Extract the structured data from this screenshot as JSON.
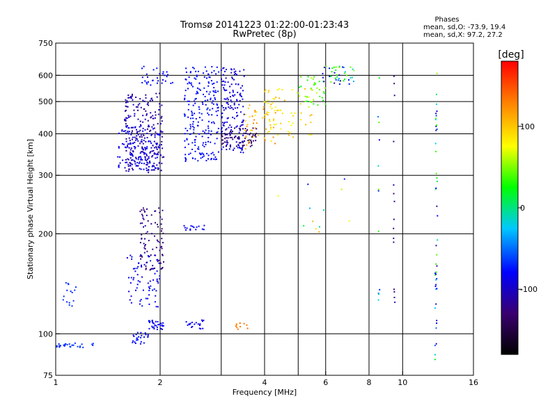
{
  "chart_data": {
    "type": "scatter",
    "title": "Tromsø 20141223 01:22:00-01:23:43",
    "subtitle": "RwPretec (8p)",
    "xlabel": "Frequency [MHz]",
    "ylabel": "Stationary phase Virtual Height [km]",
    "x_scale": "log",
    "y_scale": "log",
    "xlim": [
      1,
      16
    ],
    "ylim": [
      75,
      750
    ],
    "x_ticks": [
      1,
      2,
      4,
      6,
      8,
      10,
      16
    ],
    "x_tick_labels": [
      "1",
      "2",
      "4",
      "6",
      "8",
      "10",
      "16"
    ],
    "y_ticks": [
      75,
      100,
      200,
      300,
      400,
      500,
      600,
      750
    ],
    "y_tick_labels": [
      "75",
      "100",
      "200",
      "300",
      "400",
      "500",
      "600",
      "750"
    ],
    "grid": true,
    "stats": {
      "heading": "Phases",
      "line_o": "mean, sd,O: -73.9, 19.4",
      "line_x": "mean, sd,X:  97.2, 27.2"
    },
    "colorbar": {
      "label": "[deg]",
      "range": [
        -180,
        180
      ],
      "ticks": [
        100,
        0,
        -100
      ],
      "tick_labels": [
        "100",
        "0",
        "-100"
      ],
      "colors": [
        "#000000",
        "#3a0070",
        "#0000ff",
        "#00c8ff",
        "#00ff00",
        "#ffff00",
        "#ff8000",
        "#ff0000"
      ]
    },
    "clusters": [
      {
        "x": [
          1.58,
          2.05
        ],
        "y": [
          305,
          530
        ],
        "n": 240,
        "phase": [
          -120,
          -95
        ]
      },
      {
        "x": [
          1.5,
          2.0
        ],
        "y": [
          310,
          420
        ],
        "n": 120,
        "phase": [
          -90,
          -75
        ]
      },
      {
        "x": [
          1.75,
          2.2
        ],
        "y": [
          560,
          640
        ],
        "n": 30,
        "phase": [
          -80,
          -70
        ]
      },
      {
        "x": [
          2.35,
          2.95
        ],
        "y": [
          330,
          640
        ],
        "n": 220,
        "phase": [
          -80,
          -70
        ]
      },
      {
        "x": [
          3.0,
          3.5
        ],
        "y": [
          350,
          640
        ],
        "n": 160,
        "phase": [
          -100,
          -80
        ]
      },
      {
        "x": [
          3.0,
          3.8
        ],
        "y": [
          365,
          420
        ],
        "n": 70,
        "phase": [
          -140,
          -120
        ]
      },
      {
        "x": [
          3.5,
          4.3
        ],
        "y": [
          360,
          500
        ],
        "n": 50,
        "phase": [
          80,
          130
        ]
      },
      {
        "x": [
          4.0,
          5.5
        ],
        "y": [
          390,
          550
        ],
        "n": 60,
        "phase": [
          70,
          110
        ]
      },
      {
        "x": [
          5.0,
          6.0
        ],
        "y": [
          480,
          600
        ],
        "n": 40,
        "phase": [
          20,
          70
        ]
      },
      {
        "x": [
          5.8,
          7.3
        ],
        "y": [
          560,
          640
        ],
        "n": 45,
        "phase": [
          -120,
          60
        ]
      },
      {
        "x": [
          1.75,
          2.05
        ],
        "y": [
          155,
          240
        ],
        "n": 90,
        "phase": [
          -130,
          -110
        ]
      },
      {
        "x": [
          1.6,
          2.0
        ],
        "y": [
          120,
          175
        ],
        "n": 70,
        "phase": [
          -90,
          -70
        ]
      },
      {
        "x": [
          1.85,
          2.05
        ],
        "y": [
          103,
          110
        ],
        "n": 30,
        "phase": [
          -85,
          -75
        ]
      },
      {
        "x": [
          2.35,
          2.7
        ],
        "y": [
          103,
          110
        ],
        "n": 20,
        "phase": [
          -85,
          -75
        ]
      },
      {
        "x": [
          1.65,
          1.85
        ],
        "y": [
          93,
          102
        ],
        "n": 25,
        "phase": [
          -80,
          -70
        ]
      },
      {
        "x": [
          1.0,
          1.3
        ],
        "y": [
          91,
          94
        ],
        "n": 30,
        "phase": [
          -70,
          -60
        ]
      },
      {
        "x": [
          1.05,
          1.15
        ],
        "y": [
          120,
          145
        ],
        "n": 15,
        "phase": [
          -70,
          -60
        ]
      },
      {
        "x": [
          2.3,
          2.7
        ],
        "y": [
          205,
          212
        ],
        "n": 15,
        "phase": [
          -85,
          -75
        ]
      },
      {
        "x": [
          3.3,
          3.6
        ],
        "y": [
          103,
          108
        ],
        "n": 10,
        "phase": [
          110,
          140
        ]
      },
      {
        "x": [
          8.5,
          8.6
        ],
        "y": [
          120,
          600
        ],
        "n": 12,
        "phase": [
          -130,
          100
        ]
      },
      {
        "x": [
          9.4,
          9.5
        ],
        "y": [
          105,
          620
        ],
        "n": 15,
        "phase": [
          -130,
          -100
        ]
      },
      {
        "x": [
          12.4,
          12.6
        ],
        "y": [
          80,
          650
        ],
        "n": 45,
        "phase": [
          -130,
          60
        ]
      },
      {
        "x": [
          4.0,
          7.2
        ],
        "y": [
          200,
          300
        ],
        "n": 12,
        "phase": [
          -100,
          120
        ]
      }
    ]
  }
}
